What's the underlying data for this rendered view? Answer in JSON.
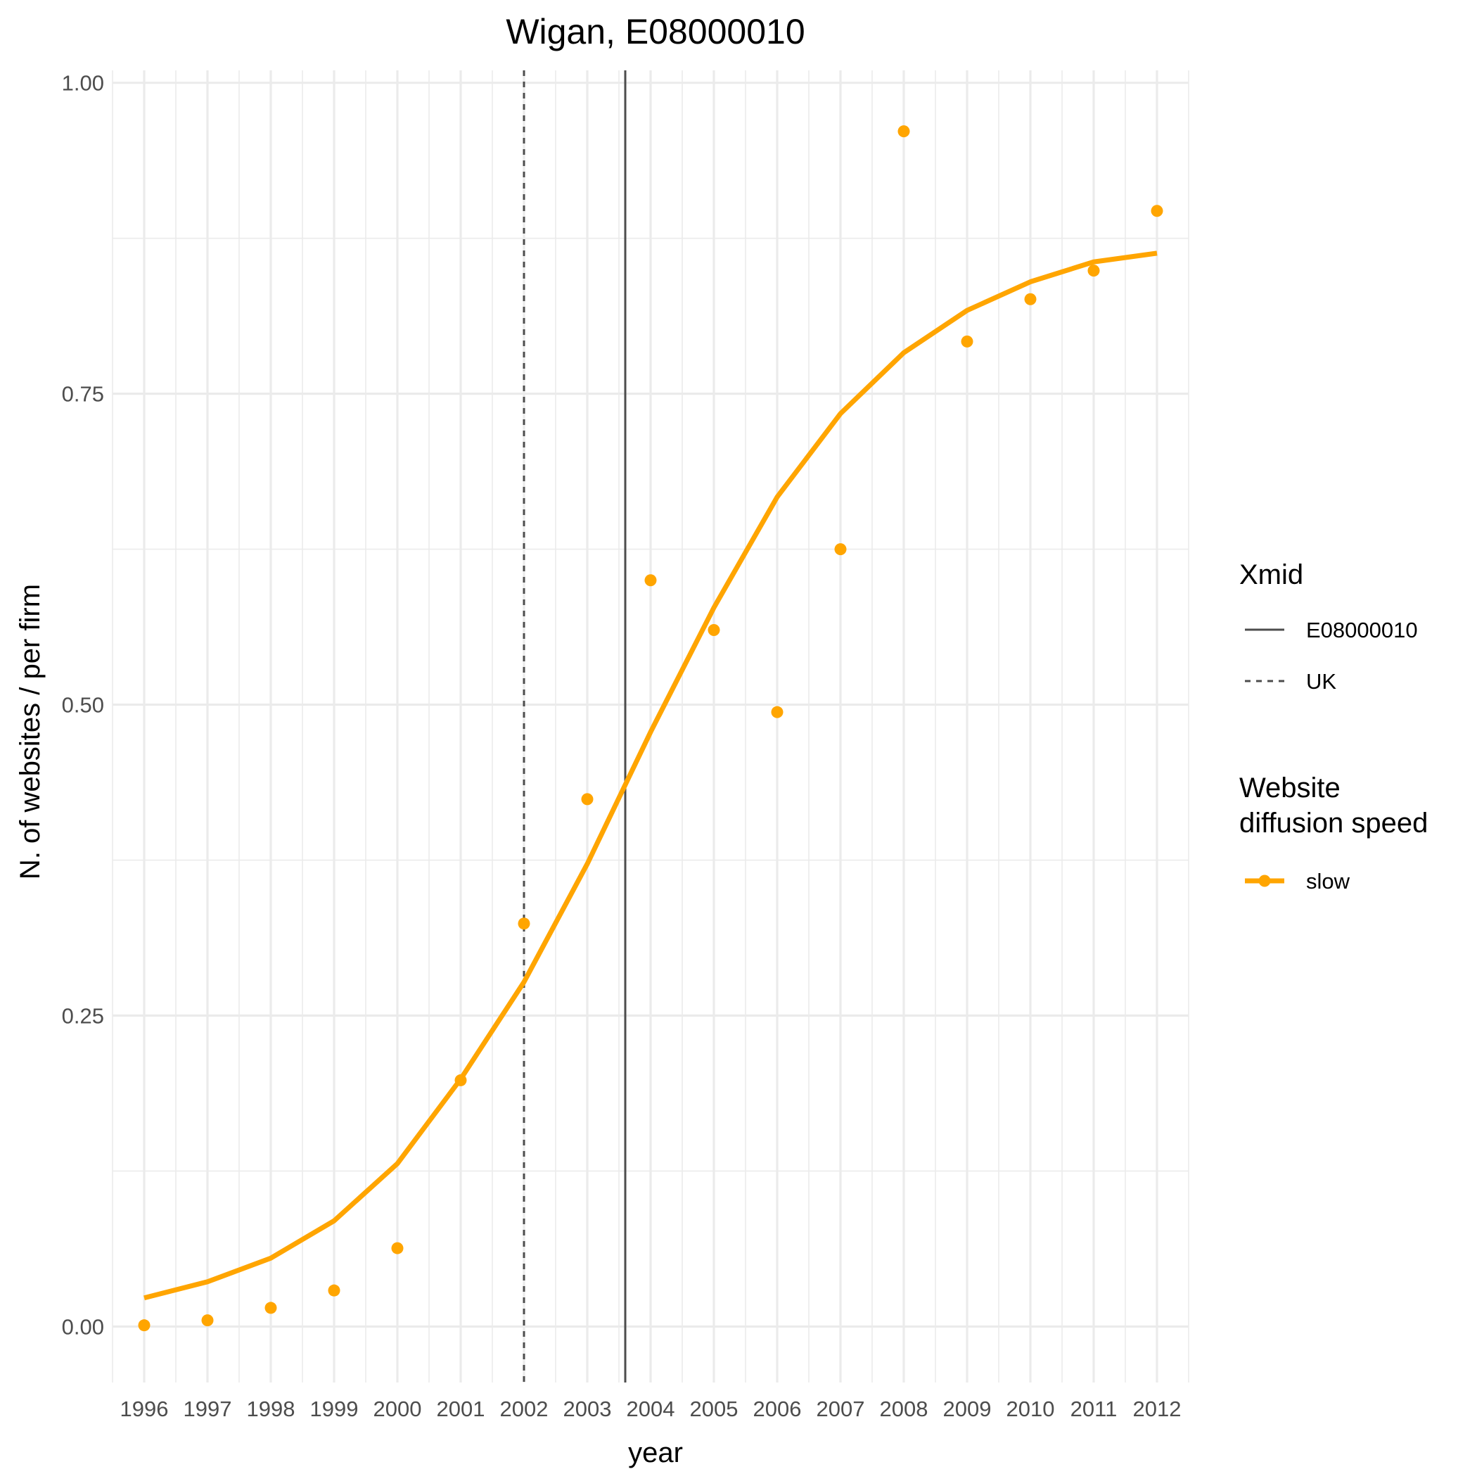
{
  "chart_data": {
    "type": "scatter",
    "title": "Wigan, E08000010",
    "xlabel": "year",
    "ylabel": "N. of websites / per firm",
    "categories": [
      "1996",
      "1997",
      "1998",
      "1999",
      "2000",
      "2001",
      "2002",
      "2003",
      "2004",
      "2005",
      "2006",
      "2007",
      "2008",
      "2009",
      "2010",
      "2011",
      "2012"
    ],
    "xlim": [
      1995.5,
      2012.5
    ],
    "ylim": [
      -0.045,
      1.01
    ],
    "y_ticks": [
      0,
      0.25,
      0.5,
      0.75,
      1
    ],
    "y_tick_labels": [
      "0.00",
      "0.25",
      "0.50",
      "0.75",
      "1.00"
    ],
    "grid": true,
    "points": {
      "x": [
        1996,
        1997,
        1998,
        1999,
        2000,
        2001,
        2002,
        2003,
        2004,
        2005,
        2006,
        2007,
        2008,
        2009,
        2010,
        2011,
        2012
      ],
      "y": [
        0.001,
        0.005,
        0.015,
        0.029,
        0.063,
        0.198,
        0.324,
        0.424,
        0.6,
        0.56,
        0.494,
        0.625,
        0.961,
        0.792,
        0.826,
        0.849,
        0.897
      ]
    },
    "series": [
      {
        "name": "slow",
        "color": "#FFA500",
        "x": [
          1996,
          1997,
          1998,
          1999,
          2000,
          2001,
          2002,
          2003,
          2004,
          2005,
          2006,
          2007,
          2008,
          2009,
          2010,
          2011,
          2012
        ],
        "values": [
          0.023,
          0.036,
          0.055,
          0.085,
          0.131,
          0.199,
          0.277,
          0.372,
          0.478,
          0.578,
          0.667,
          0.734,
          0.783,
          0.817,
          0.84,
          0.856,
          0.863
        ]
      }
    ],
    "vlines": [
      {
        "name": "E08000010",
        "x": 2003.6,
        "style": "solid",
        "color": "#4d4d4d"
      },
      {
        "name": "UK",
        "x": 2002.0,
        "style": "dashed",
        "color": "#4d4d4d"
      }
    ],
    "legend_position": "right",
    "legend": {
      "xmid_title": "Xmid",
      "xmid_items": [
        "E08000010",
        "UK"
      ],
      "speed_title_line1": "Website",
      "speed_title_line2": "diffusion speed",
      "speed_items": [
        "slow"
      ]
    }
  }
}
